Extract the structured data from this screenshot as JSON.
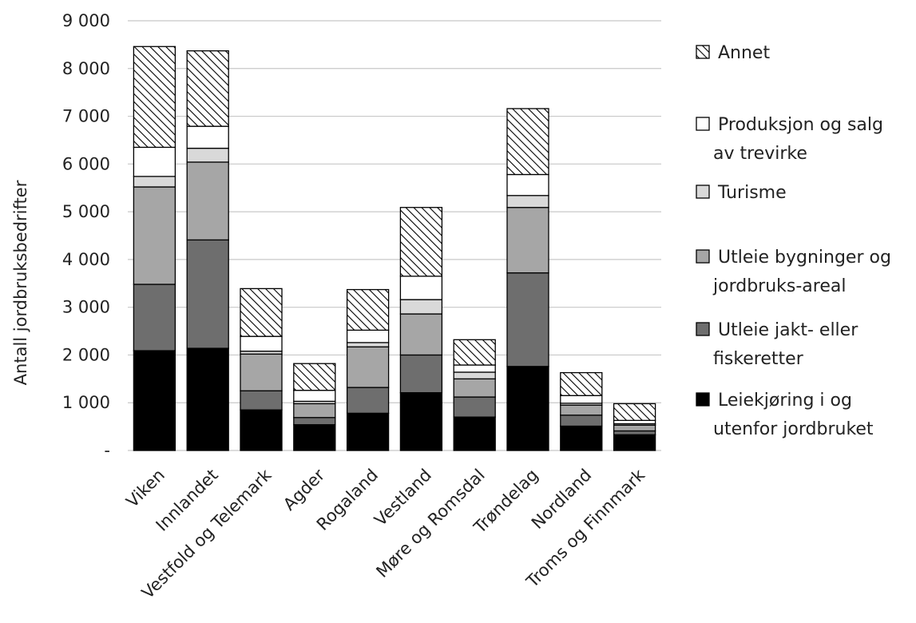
{
  "chart_data": {
    "type": "bar",
    "stacked": true,
    "title": "",
    "xlabel": "",
    "ylabel": "Antall jordbruksbedrifter",
    "ylim": [
      0,
      9000
    ],
    "yticks": [
      0,
      1000,
      2000,
      3000,
      4000,
      5000,
      6000,
      7000,
      8000,
      9000
    ],
    "ytick_labels": [
      "-",
      "1 000",
      "2 000",
      "3 000",
      "4 000",
      "5 000",
      "6 000",
      "7 000",
      "8 000",
      "9 000"
    ],
    "grid": true,
    "legend_position": "right",
    "categories": [
      "Viken",
      "Innlandet",
      "Vestfold og Telemark",
      "Agder",
      "Rogaland",
      "Vestland",
      "Møre og Romsdal",
      "Trøndelag",
      "Nordland",
      "Troms og Finnmark"
    ],
    "series": [
      {
        "name": "Leiekjøring i og utenfor jordbruket",
        "legend_lines": [
          "Leiekjøring i og",
          "utenfor jordbruket"
        ],
        "fill": "solid",
        "color": "#000000",
        "values": [
          2090,
          2140,
          850,
          540,
          780,
          1210,
          700,
          1760,
          510,
          330
        ]
      },
      {
        "name": "Utleie jakt- eller fiskeretter",
        "legend_lines": [
          "Utleie jakt- eller",
          "fiskeretter"
        ],
        "fill": "solid",
        "color": "#6e6e6e",
        "values": [
          1390,
          2270,
          400,
          150,
          540,
          790,
          420,
          1960,
          230,
          80
        ]
      },
      {
        "name": "Utleie bygninger og jordbruks-areal",
        "legend_lines": [
          "Utleie bygninger og",
          "jordbruks-areal"
        ],
        "fill": "solid",
        "color": "#a6a6a6",
        "values": [
          2040,
          1630,
          770,
          290,
          850,
          860,
          380,
          1370,
          210,
          120
        ]
      },
      {
        "name": "Turisme",
        "legend_lines": [
          "Turisme"
        ],
        "fill": "solid",
        "color": "#d9d9d9",
        "values": [
          220,
          290,
          60,
          50,
          90,
          300,
          140,
          250,
          40,
          30
        ]
      },
      {
        "name": "Produksjon og salg av trevirke",
        "legend_lines": [
          "Produksjon og salg",
          "av trevirke"
        ],
        "fill": "solid",
        "color": "#ffffff",
        "values": [
          610,
          460,
          310,
          230,
          260,
          490,
          150,
          440,
          160,
          70
        ]
      },
      {
        "name": "Annet",
        "legend_lines": [
          "Annet"
        ],
        "fill": "hatched",
        "color": "#000000",
        "values": [
          2110,
          1580,
          1000,
          560,
          850,
          1440,
          530,
          1380,
          480,
          350
        ]
      }
    ]
  }
}
